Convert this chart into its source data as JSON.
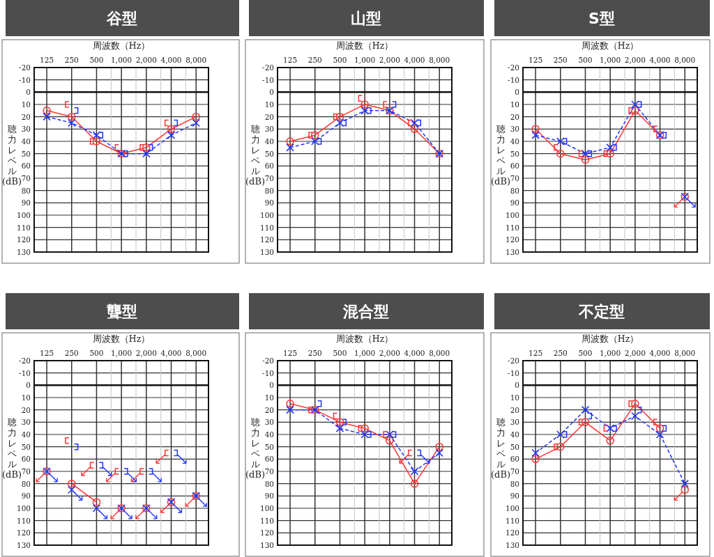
{
  "chart_data": [
    {
      "type": "line",
      "title": "谷型",
      "xlabel": "周波数（Hz）",
      "ylabel": "聴力レベル (dB)",
      "log": "x",
      "grid": true,
      "xlim": [
        88,
        11300
      ],
      "xticks": [
        {
          "value": 125,
          "label": "125"
        },
        {
          "value": 250,
          "label": "250"
        },
        {
          "value": 500,
          "label": "500"
        },
        {
          "value": 750,
          "label": null
        },
        {
          "value": 1000,
          "label": "1,000"
        },
        {
          "value": 1500,
          "label": null
        },
        {
          "value": 2000,
          "label": "2,000"
        },
        {
          "value": 3000,
          "label": null
        },
        {
          "value": 4000,
          "label": "4,000"
        },
        {
          "value": 6000,
          "label": null
        },
        {
          "value": 8000,
          "label": "8,000"
        }
      ],
      "ylim": [
        130,
        -20
      ],
      "yticks": [
        -20,
        -10,
        0,
        10,
        20,
        30,
        40,
        50,
        60,
        70,
        80,
        90,
        100,
        110,
        120,
        130
      ],
      "ref_lines": [
        {
          "axis": "y",
          "value": 0
        }
      ],
      "series": [
        {
          "type": "line",
          "color": "#ff3333",
          "marker": "circle",
          "line_style": "solid",
          "x": [
            125,
            250,
            500,
            1000,
            2000,
            4000,
            8000
          ],
          "values": [
            15,
            20,
            40,
            50,
            45,
            30,
            20
          ]
        },
        {
          "type": "line",
          "color": "#2233ff",
          "marker": "cross",
          "line_style": "dashed",
          "x": [
            125,
            250,
            500,
            1000,
            2000,
            4000,
            8000
          ],
          "values": [
            20,
            25,
            35,
            50,
            50,
            35,
            25
          ]
        },
        {
          "type": "scatter",
          "color": "#ff3333",
          "x": [
            221,
            442,
            885,
            1770,
            3540
          ],
          "values": [
            10,
            40,
            45,
            45,
            25
          ]
        },
        {
          "type": "scatter",
          "color": "#2233ff",
          "x": [
            283,
            566,
            1130,
            2260,
            4520
          ],
          "values": [
            15,
            35,
            50,
            45,
            25
          ]
        }
      ]
    },
    {
      "type": "line",
      "title": "山型",
      "xlabel": "周波数（Hz）",
      "ylabel": "聴力レベル (dB)",
      "log": "x",
      "grid": true,
      "xlim": [
        88,
        11300
      ],
      "xticks": [
        {
          "value": 125,
          "label": "125"
        },
        {
          "value": 250,
          "label": "250"
        },
        {
          "value": 500,
          "label": "500"
        },
        {
          "value": 750,
          "label": null
        },
        {
          "value": 1000,
          "label": "1,000"
        },
        {
          "value": 1500,
          "label": null
        },
        {
          "value": 2000,
          "label": "2,000"
        },
        {
          "value": 3000,
          "label": null
        },
        {
          "value": 4000,
          "label": "4,000"
        },
        {
          "value": 6000,
          "label": null
        },
        {
          "value": 8000,
          "label": "8,000"
        }
      ],
      "ylim": [
        130,
        -20
      ],
      "yticks": [
        -20,
        -10,
        0,
        10,
        20,
        30,
        40,
        50,
        60,
        70,
        80,
        90,
        100,
        110,
        120,
        130
      ],
      "ref_lines": [
        {
          "axis": "y",
          "value": 0
        }
      ],
      "series": [
        {
          "type": "line",
          "color": "#ff3333",
          "marker": "circle",
          "line_style": "solid",
          "x": [
            125,
            250,
            500,
            1000,
            2000,
            4000,
            8000
          ],
          "values": [
            40,
            35,
            20,
            10,
            15,
            30,
            50
          ]
        },
        {
          "type": "line",
          "color": "#2233ff",
          "marker": "cross",
          "line_style": "dashed",
          "x": [
            125,
            250,
            500,
            1000,
            2000,
            4000,
            8000
          ],
          "values": [
            45,
            40,
            25,
            15,
            15,
            25,
            50
          ]
        },
        {
          "type": "scatter",
          "color": "#ff3333",
          "x": [
            221,
            442,
            885,
            1770,
            3540
          ],
          "values": [
            35,
            20,
            5,
            10,
            25
          ]
        },
        {
          "type": "scatter",
          "color": "#2233ff",
          "x": [
            283,
            566,
            1130,
            2260,
            4520
          ],
          "values": [
            40,
            25,
            15,
            10,
            25
          ]
        }
      ]
    },
    {
      "type": "line",
      "title": "S型",
      "xlabel": "周波数（Hz）",
      "ylabel": "聴力レベル (dB)",
      "log": "x",
      "grid": true,
      "xlim": [
        88,
        11300
      ],
      "xticks": [
        {
          "value": 125,
          "label": "125"
        },
        {
          "value": 250,
          "label": "250"
        },
        {
          "value": 500,
          "label": "500"
        },
        {
          "value": 750,
          "label": null
        },
        {
          "value": 1000,
          "label": "1,000"
        },
        {
          "value": 1500,
          "label": null
        },
        {
          "value": 2000,
          "label": "2,000"
        },
        {
          "value": 3000,
          "label": null
        },
        {
          "value": 4000,
          "label": "4,000"
        },
        {
          "value": 6000,
          "label": null
        },
        {
          "value": 8000,
          "label": "8,000"
        }
      ],
      "ylim": [
        130,
        -20
      ],
      "yticks": [
        -20,
        -10,
        0,
        10,
        20,
        30,
        40,
        50,
        60,
        70,
        80,
        90,
        100,
        110,
        120,
        130
      ],
      "ref_lines": [
        {
          "axis": "y",
          "value": 0
        }
      ],
      "series": [
        {
          "type": "line",
          "color": "#ff3333",
          "marker": "circle",
          "line_style": "solid",
          "x": [
            125,
            250,
            500,
            1000,
            2000,
            4000
          ],
          "values": [
            30,
            50,
            55,
            50,
            15,
            35
          ]
        },
        {
          "type": "line",
          "color": "#2233ff",
          "marker": "cross",
          "line_style": "dashed",
          "x": [
            125,
            250,
            500,
            1000,
            2000,
            4000
          ],
          "values": [
            35,
            40,
            50,
            45,
            10,
            35
          ]
        },
        {
          "type": "scatter",
          "color": "#ff3333",
          "marker": "circle",
          "x": [
            8000
          ],
          "values": [
            85
          ]
        },
        {
          "type": "scatter",
          "color": "#2233ff",
          "marker": "cross",
          "x": [
            8000
          ],
          "values": [
            85
          ]
        },
        {
          "type": "scatter",
          "color": "#ff3333",
          "x": [
            221,
            442,
            885,
            1770,
            3540
          ],
          "values": [
            45,
            50,
            50,
            15,
            30
          ]
        },
        {
          "type": "scatter",
          "color": "#2233ff",
          "x": [
            283,
            566,
            1130,
            2260,
            4520
          ],
          "values": [
            40,
            50,
            45,
            10,
            35
          ]
        },
        {
          "type": "scatter",
          "color": "#ff3333",
          "x": [
            6727
          ],
          "values": [
            90
          ]
        },
        {
          "type": "scatter",
          "color": "#2233ff",
          "x": [
            9514
          ],
          "values": [
            90
          ]
        }
      ]
    },
    {
      "type": "line",
      "title": "聾型",
      "xlabel": "周波数（Hz）",
      "ylabel": "聴力レベル (dB)",
      "log": "x",
      "grid": true,
      "xlim": [
        88,
        11300
      ],
      "xticks": [
        {
          "value": 125,
          "label": "125"
        },
        {
          "value": 250,
          "label": "250"
        },
        {
          "value": 500,
          "label": "500"
        },
        {
          "value": 750,
          "label": null
        },
        {
          "value": 1000,
          "label": "1,000"
        },
        {
          "value": 1500,
          "label": null
        },
        {
          "value": 2000,
          "label": "2,000"
        },
        {
          "value": 3000,
          "label": null
        },
        {
          "value": 4000,
          "label": "4,000"
        },
        {
          "value": 6000,
          "label": null
        },
        {
          "value": 8000,
          "label": "8,000"
        }
      ],
      "ylim": [
        130,
        -20
      ],
      "yticks": [
        -20,
        -10,
        0,
        10,
        20,
        30,
        40,
        50,
        60,
        70,
        80,
        90,
        100,
        110,
        120,
        130
      ],
      "ref_lines": [
        {
          "axis": "y",
          "value": 0
        }
      ],
      "series": [
        {
          "type": "line",
          "color": "#ff3333",
          "marker": "circle",
          "line_style": "solid",
          "x": [
            250,
            500
          ],
          "values": [
            80,
            95
          ]
        },
        {
          "type": "scatter",
          "color": "#ff3333",
          "marker": "circle",
          "x": [
            125,
            1000,
            2000,
            4000,
            8000
          ],
          "values": [
            70,
            100,
            100,
            95,
            90
          ]
        },
        {
          "type": "scatter",
          "color": "#2233ff",
          "marker": "cross",
          "x": [
            125,
            250,
            500,
            1000,
            2000,
            4000,
            8000
          ],
          "values": [
            70,
            85,
            100,
            100,
            100,
            95,
            90
          ]
        },
        {
          "type": "scatter",
          "color": "#ff3333",
          "x": [
            221,
            442,
            885,
            1770,
            3540
          ],
          "values": [
            45,
            65,
            70,
            70,
            55
          ]
        },
        {
          "type": "scatter",
          "color": "#2233ff",
          "x": [
            283,
            566,
            1130,
            2260,
            4520
          ],
          "values": [
            50,
            65,
            70,
            70,
            55
          ]
        },
        {
          "type": "scatter",
          "color": "#ff3333",
          "x": [
            105,
            371,
            742,
            841,
            1485,
            1682,
            2970,
            3364,
            6727
          ],
          "values": [
            75,
            70,
            75,
            105,
            75,
            105,
            60,
            100,
            95
          ]
        },
        {
          "type": "scatter",
          "color": "#2233ff",
          "x": [
            149,
            297,
            595,
            674,
            1189,
            1347,
            2378,
            2694,
            4757,
            5388,
            9514
          ],
          "values": [
            75,
            90,
            105,
            70,
            105,
            75,
            105,
            75,
            100,
            60,
            95
          ]
        }
      ]
    },
    {
      "type": "line",
      "title": "混合型",
      "xlabel": "周波数（Hz）",
      "ylabel": "聴力レベル (dB)",
      "log": "x",
      "grid": true,
      "xlim": [
        88,
        11300
      ],
      "xticks": [
        {
          "value": 125,
          "label": "125"
        },
        {
          "value": 250,
          "label": "250"
        },
        {
          "value": 500,
          "label": "500"
        },
        {
          "value": 750,
          "label": null
        },
        {
          "value": 1000,
          "label": "1,000"
        },
        {
          "value": 1500,
          "label": null
        },
        {
          "value": 2000,
          "label": "2,000"
        },
        {
          "value": 3000,
          "label": null
        },
        {
          "value": 4000,
          "label": "4,000"
        },
        {
          "value": 6000,
          "label": null
        },
        {
          "value": 8000,
          "label": "8,000"
        }
      ],
      "ylim": [
        130,
        -20
      ],
      "yticks": [
        -20,
        -10,
        0,
        10,
        20,
        30,
        40,
        50,
        60,
        70,
        80,
        90,
        100,
        110,
        120,
        130
      ],
      "ref_lines": [
        {
          "axis": "y",
          "value": 0
        }
      ],
      "series": [
        {
          "type": "line",
          "color": "#ff3333",
          "marker": "circle",
          "line_style": "solid",
          "x": [
            125,
            250,
            500,
            1000,
            2000,
            4000,
            8000
          ],
          "values": [
            15,
            20,
            30,
            35,
            45,
            80,
            50
          ]
        },
        {
          "type": "line",
          "color": "#2233ff",
          "marker": "cross",
          "line_style": "dashed",
          "x": [
            125,
            250,
            500,
            1000,
            2000,
            4000,
            8000
          ],
          "values": [
            20,
            20,
            35,
            40,
            40,
            70,
            55
          ]
        },
        {
          "type": "scatter",
          "color": "#ff3333",
          "x": [
            221,
            442,
            885,
            1770,
            3540
          ],
          "values": [
            20,
            25,
            35,
            40,
            55
          ]
        },
        {
          "type": "scatter",
          "color": "#2233ff",
          "x": [
            283,
            566,
            1130,
            2260,
            4520
          ],
          "values": [
            15,
            30,
            40,
            40,
            55
          ]
        },
        {
          "type": "scatter",
          "color": "#ff3333",
          "x": [
            2970
          ],
          "values": [
            60
          ]
        },
        {
          "type": "scatter",
          "color": "#2233ff",
          "x": [
            5388
          ],
          "values": [
            60
          ]
        }
      ]
    },
    {
      "type": "line",
      "title": "不定型",
      "xlabel": "周波数（Hz）",
      "ylabel": "聴力レベル (dB)",
      "log": "x",
      "grid": true,
      "xlim": [
        88,
        11300
      ],
      "xticks": [
        {
          "value": 125,
          "label": "125"
        },
        {
          "value": 250,
          "label": "250"
        },
        {
          "value": 500,
          "label": "500"
        },
        {
          "value": 750,
          "label": null
        },
        {
          "value": 1000,
          "label": "1,000"
        },
        {
          "value": 1500,
          "label": null
        },
        {
          "value": 2000,
          "label": "2,000"
        },
        {
          "value": 3000,
          "label": null
        },
        {
          "value": 4000,
          "label": "4,000"
        },
        {
          "value": 6000,
          "label": null
        },
        {
          "value": 8000,
          "label": "8,000"
        }
      ],
      "ylim": [
        130,
        -20
      ],
      "yticks": [
        -20,
        -10,
        0,
        10,
        20,
        30,
        40,
        50,
        60,
        70,
        80,
        90,
        100,
        110,
        120,
        130
      ],
      "ref_lines": [
        {
          "axis": "y",
          "value": 0
        }
      ],
      "series": [
        {
          "type": "line",
          "color": "#ff3333",
          "marker": "circle",
          "line_style": "solid",
          "x": [
            125,
            250,
            500,
            1000,
            2000,
            4000
          ],
          "values": [
            60,
            50,
            30,
            45,
            15,
            35
          ]
        },
        {
          "type": "line",
          "color": "#2233ff",
          "marker": "cross",
          "line_style": "dashed",
          "x": [
            125,
            250,
            500,
            1000,
            2000,
            4000,
            8000
          ],
          "values": [
            55,
            40,
            20,
            35,
            25,
            40,
            80
          ]
        },
        {
          "type": "scatter",
          "color": "#ff3333",
          "marker": "circle",
          "x": [
            8000
          ],
          "values": [
            85
          ]
        },
        {
          "type": "scatter",
          "color": "#ff3333",
          "x": [
            221,
            442,
            885,
            1770,
            3540
          ],
          "values": [
            50,
            30,
            35,
            15,
            30
          ]
        },
        {
          "type": "scatter",
          "color": "#2233ff",
          "x": [
            283,
            566,
            1130,
            2260,
            4520
          ],
          "values": [
            40,
            25,
            35,
            20,
            35
          ]
        },
        {
          "type": "scatter",
          "color": "#ff3333",
          "x": [
            6727
          ],
          "values": [
            90
          ]
        }
      ]
    }
  ]
}
